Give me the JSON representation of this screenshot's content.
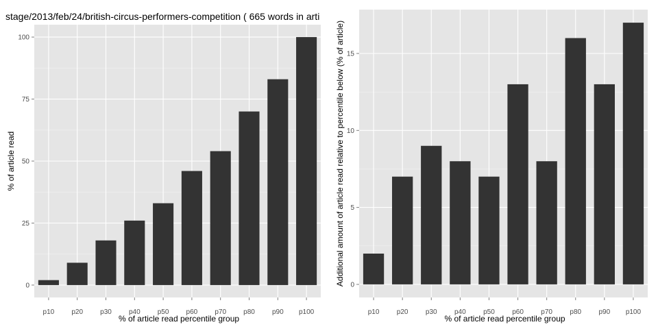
{
  "title": "stage/2013/feb/24/british-circus-performers-competition ( 665 words in arti",
  "chart_data": [
    {
      "type": "bar",
      "categories": [
        "p10",
        "p20",
        "p30",
        "p40",
        "p50",
        "p60",
        "p70",
        "p80",
        "p90",
        "p100"
      ],
      "values": [
        2,
        9,
        18,
        26,
        33,
        46,
        54,
        70,
        83,
        100
      ],
      "xlabel": "% of article read percentile group",
      "ylabel": "% of article read",
      "ylim": [
        -5,
        105
      ],
      "yticks": [
        0,
        25,
        50,
        75,
        100
      ],
      "grid": true,
      "color": "#333333"
    },
    {
      "type": "bar",
      "categories": [
        "p10",
        "p20",
        "p30",
        "p40",
        "p50",
        "p60",
        "p70",
        "p80",
        "p90",
        "p100"
      ],
      "values": [
        2,
        7,
        9,
        8,
        7,
        13,
        8,
        16,
        13,
        17
      ],
      "xlabel": "% of article read percentile group",
      "ylabel": "Additional amount of article read relative to percentile below (% of article)",
      "ylim": [
        -0.85,
        17.85
      ],
      "yticks": [
        0,
        5,
        10,
        15
      ],
      "grid": true,
      "color": "#333333"
    }
  ]
}
